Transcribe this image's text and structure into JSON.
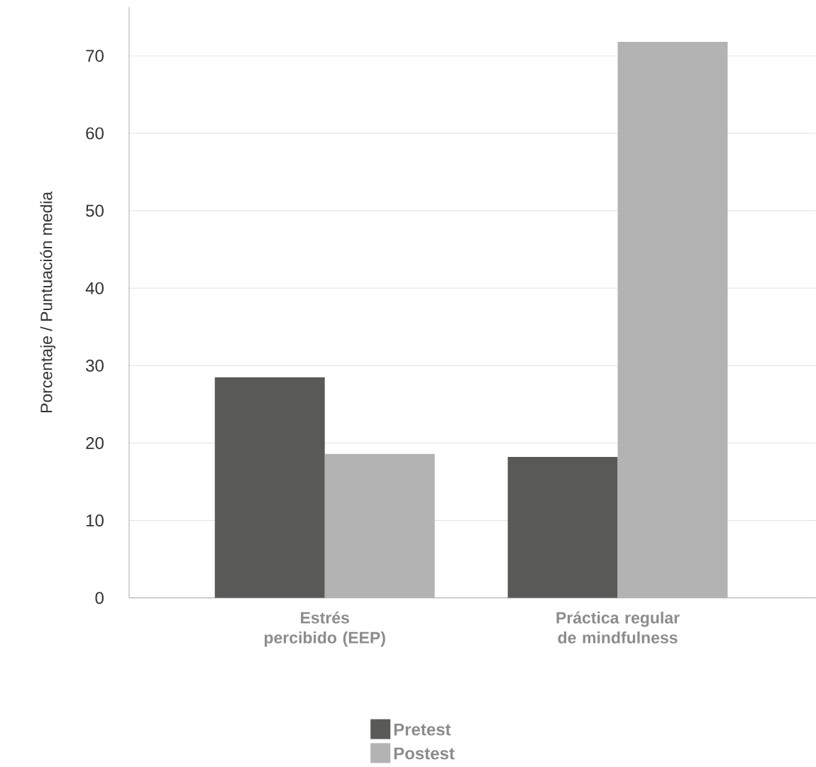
{
  "chart_data": {
    "type": "bar",
    "ylabel": "Porcentaje / Puntuación media",
    "categories": [
      "Estrés percibido (EEP)",
      "Práctica regular de mindfulness"
    ],
    "series": [
      {
        "name": "Pretest",
        "color": "#595957",
        "values": [
          28.5,
          18.2
        ]
      },
      {
        "name": "Postest",
        "color": "#b3b3b3",
        "values": [
          18.6,
          71.8
        ]
      }
    ],
    "ylim": [
      0,
      76.3
    ],
    "yticks": [
      0,
      10,
      20,
      30,
      40,
      50,
      60,
      70
    ],
    "grid": "y",
    "legend": "bottom"
  }
}
